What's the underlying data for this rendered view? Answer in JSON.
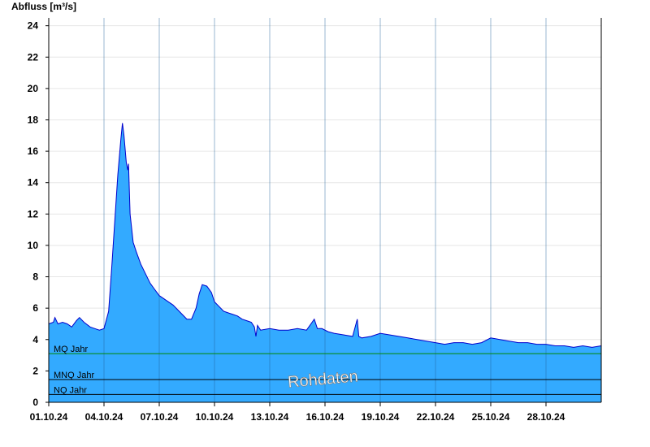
{
  "chart_data": {
    "type": "area",
    "ylabel": "Abfluss [m³/s]",
    "xlabel": "",
    "ylim": [
      0,
      24.5
    ],
    "yticks": [
      0,
      2,
      4,
      6,
      8,
      10,
      12,
      14,
      16,
      18,
      20,
      22,
      24
    ],
    "xlim": [
      "2024-10-01T00:00",
      "2024-10-31T00:00"
    ],
    "xtick_labels": [
      "01.10.24",
      "04.10.24",
      "07.10.24",
      "10.10.24",
      "13.10.24",
      "16.10.24",
      "19.10.24",
      "22.10.24",
      "25.10.24",
      "28.10.24"
    ],
    "xtick_dates": [
      "2024-10-01T00:00",
      "2024-10-04T00:00",
      "2024-10-07T00:00",
      "2024-10-10T00:00",
      "2024-10-13T00:00",
      "2024-10-16T00:00",
      "2024-10-19T00:00",
      "2024-10-22T00:00",
      "2024-10-25T00:00",
      "2024-10-28T00:00"
    ],
    "grid": true,
    "colors": {
      "fill": "#33aaff",
      "line": "#0000cc",
      "mq": "#008800",
      "mnq": "#000000",
      "nq": "#000000"
    },
    "reference_lines": [
      {
        "label": "MQ Jahr",
        "value": 3.1
      },
      {
        "label": "MNQ Jahr",
        "value": 1.45
      },
      {
        "label": "NQ Jahr",
        "value": 0.5
      }
    ],
    "watermark": "Rohdaten",
    "series": [
      {
        "x": [
          "2024-10-01T00:00",
          "2024-10-01T06:00",
          "2024-10-01T08:00",
          "2024-10-01T12:00",
          "2024-10-01T18:00",
          "2024-10-02T00:00",
          "2024-10-02T06:00",
          "2024-10-02T12:00",
          "2024-10-02T16:00",
          "2024-10-02T22:00",
          "2024-10-03T06:00",
          "2024-10-03T12:00",
          "2024-10-03T18:00",
          "2024-10-04T00:00",
          "2024-10-04T06:00",
          "2024-10-04T10:00",
          "2024-10-04T14:00",
          "2024-10-04T18:00",
          "2024-10-04T22:00",
          "2024-10-05T00:00",
          "2024-10-05T02:00",
          "2024-10-05T05:00",
          "2024-10-05T07:00",
          "2024-10-05T08:00",
          "2024-10-05T10:00",
          "2024-10-05T14:00",
          "2024-10-05T18:00",
          "2024-10-06T00:00",
          "2024-10-06T06:00",
          "2024-10-06T12:00",
          "2024-10-06T18:00",
          "2024-10-07T00:00",
          "2024-10-07T06:00",
          "2024-10-07T12:00",
          "2024-10-07T18:00",
          "2024-10-08T00:00",
          "2024-10-08T06:00",
          "2024-10-08T12:00",
          "2024-10-08T18:00",
          "2024-10-09T00:00",
          "2024-10-09T04:00",
          "2024-10-09T08:00",
          "2024-10-09T14:00",
          "2024-10-09T20:00",
          "2024-10-10T00:00",
          "2024-10-10T06:00",
          "2024-10-10T12:00",
          "2024-10-10T18:00",
          "2024-10-11T00:00",
          "2024-10-11T06:00",
          "2024-10-11T12:00",
          "2024-10-11T18:00",
          "2024-10-12T00:00",
          "2024-10-12T04:00",
          "2024-10-12T06:00",
          "2024-10-12T08:00",
          "2024-10-12T12:00",
          "2024-10-13T00:00",
          "2024-10-13T12:00",
          "2024-10-14T00:00",
          "2024-10-14T12:00",
          "2024-10-15T00:00",
          "2024-10-15T10:00",
          "2024-10-15T14:00",
          "2024-10-15T20:00",
          "2024-10-16T04:00",
          "2024-10-16T12:00",
          "2024-10-17T00:00",
          "2024-10-17T12:00",
          "2024-10-17T18:00",
          "2024-10-17T20:00",
          "2024-10-18T00:00",
          "2024-10-18T12:00",
          "2024-10-19T00:00",
          "2024-10-19T12:00",
          "2024-10-20T00:00",
          "2024-10-20T12:00",
          "2024-10-21T00:00",
          "2024-10-21T12:00",
          "2024-10-22T00:00",
          "2024-10-22T12:00",
          "2024-10-23T00:00",
          "2024-10-23T12:00",
          "2024-10-24T00:00",
          "2024-10-24T12:00",
          "2024-10-25T00:00",
          "2024-10-25T12:00",
          "2024-10-26T00:00",
          "2024-10-26T12:00",
          "2024-10-27T00:00",
          "2024-10-27T12:00",
          "2024-10-28T00:00",
          "2024-10-28T12:00",
          "2024-10-29T00:00",
          "2024-10-29T12:00",
          "2024-10-30T00:00",
          "2024-10-30T12:00",
          "2024-10-31T00:00"
        ],
        "y": [
          5.0,
          5.1,
          5.4,
          5.0,
          5.1,
          5.0,
          4.8,
          5.2,
          5.4,
          5.1,
          4.8,
          4.7,
          4.6,
          4.7,
          5.8,
          8.5,
          11.5,
          14.5,
          16.8,
          17.8,
          17.0,
          15.3,
          14.8,
          15.2,
          12.0,
          10.2,
          9.6,
          8.8,
          8.2,
          7.6,
          7.2,
          6.8,
          6.6,
          6.4,
          6.2,
          5.9,
          5.6,
          5.3,
          5.3,
          6.0,
          6.9,
          7.5,
          7.4,
          7.0,
          6.4,
          6.1,
          5.8,
          5.7,
          5.6,
          5.5,
          5.3,
          5.2,
          5.1,
          4.8,
          4.2,
          4.9,
          4.6,
          4.7,
          4.6,
          4.6,
          4.7,
          4.6,
          5.3,
          4.7,
          4.7,
          4.5,
          4.4,
          4.3,
          4.2,
          5.3,
          4.2,
          4.1,
          4.2,
          4.4,
          4.3,
          4.2,
          4.1,
          4.0,
          3.9,
          3.8,
          3.7,
          3.8,
          3.8,
          3.7,
          3.8,
          4.1,
          4.0,
          3.9,
          3.8,
          3.8,
          3.7,
          3.7,
          3.6,
          3.6,
          3.5,
          3.6,
          3.5,
          3.6
        ]
      }
    ]
  }
}
